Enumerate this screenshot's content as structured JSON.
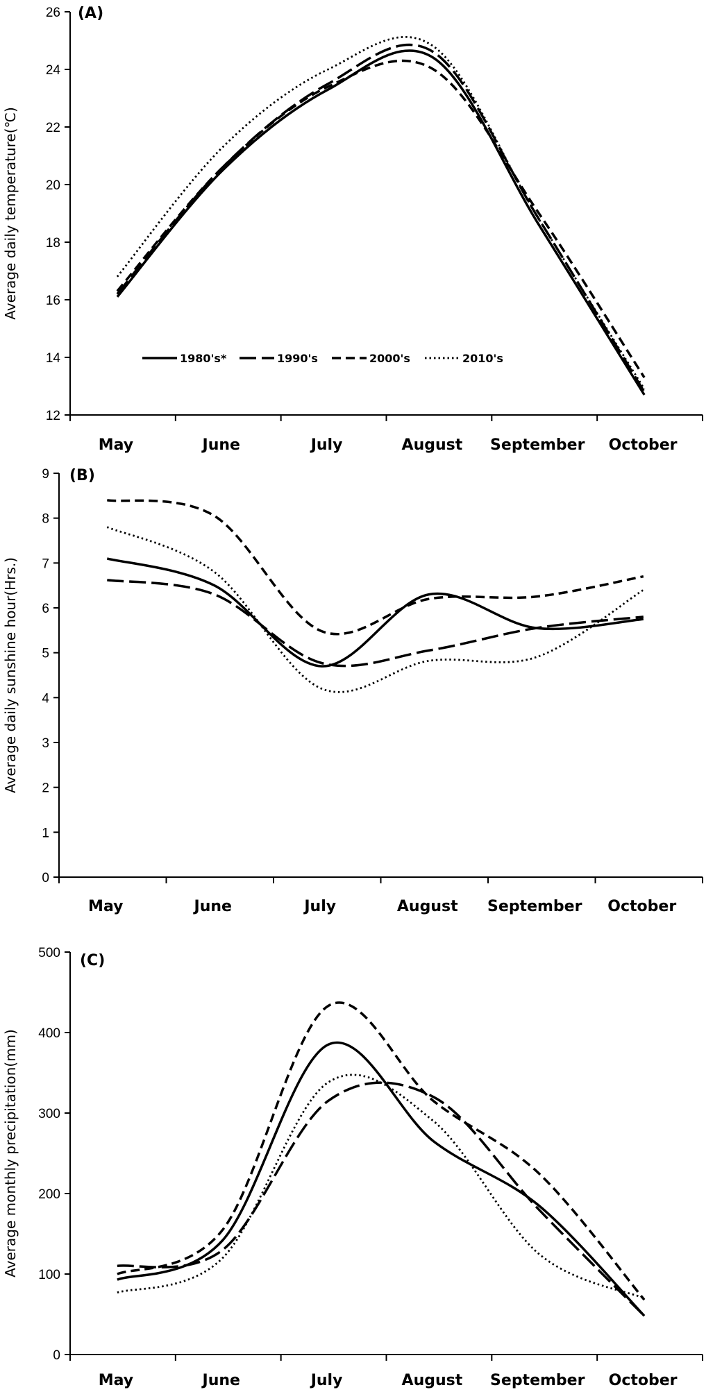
{
  "chart_data": [
    {
      "panel": "(A)",
      "type": "line",
      "ylabel": "Average daily temperature(℃)",
      "ylim": [
        12,
        26
      ],
      "yticks": [
        12,
        14,
        16,
        18,
        20,
        22,
        24,
        26
      ],
      "categories": [
        "May",
        "June",
        "July",
        "August",
        "September",
        "October"
      ],
      "legend": {
        "position": "bottom-left",
        "show": true
      },
      "grid": false,
      "series": [
        {
          "name": "1980's*",
          "style": "solid",
          "values": [
            16.1,
            20.5,
            23.3,
            24.4,
            18.6,
            12.7
          ]
        },
        {
          "name": "1990's",
          "style": "long-dash",
          "values": [
            16.2,
            20.6,
            23.5,
            24.6,
            18.8,
            12.8
          ]
        },
        {
          "name": "2000's",
          "style": "dash",
          "values": [
            16.3,
            20.6,
            23.4,
            24.0,
            19.0,
            13.3
          ]
        },
        {
          "name": "2010's",
          "style": "dot",
          "values": [
            16.8,
            21.3,
            24.0,
            24.8,
            18.8,
            12.9
          ]
        }
      ]
    },
    {
      "panel": "(B)",
      "type": "line",
      "ylabel": "Average daily sunshine hour(Hrs.)",
      "ylim": [
        0,
        9
      ],
      "yticks": [
        0,
        1,
        2,
        3,
        4,
        5,
        6,
        7,
        8,
        9
      ],
      "categories": [
        "May",
        "June",
        "July",
        "August",
        "September",
        "October"
      ],
      "grid": false,
      "series": [
        {
          "name": "1980's*",
          "style": "solid",
          "values": [
            7.1,
            6.5,
            4.7,
            6.3,
            5.55,
            5.75
          ]
        },
        {
          "name": "1990's",
          "style": "long-dash",
          "values": [
            6.62,
            6.3,
            4.77,
            5.05,
            5.55,
            5.8
          ]
        },
        {
          "name": "2000's",
          "style": "dash",
          "values": [
            8.4,
            8.05,
            5.48,
            6.2,
            6.25,
            6.7
          ]
        },
        {
          "name": "2010's",
          "style": "dot",
          "values": [
            7.8,
            6.8,
            4.2,
            4.82,
            4.9,
            6.4
          ]
        }
      ]
    },
    {
      "panel": "(C)",
      "type": "line",
      "ylabel": "Average monthly precipitation(mm)",
      "ylim": [
        0,
        500
      ],
      "yticks": [
        0,
        100,
        200,
        300,
        400,
        500
      ],
      "categories": [
        "May",
        "June",
        "July",
        "August",
        "September",
        "October"
      ],
      "grid": false,
      "series": [
        {
          "name": "1980's*",
          "style": "solid",
          "values": [
            93,
            142,
            385,
            265,
            185,
            48
          ]
        },
        {
          "name": "1990's",
          "style": "long-dash",
          "values": [
            110,
            130,
            315,
            320,
            180,
            48
          ]
        },
        {
          "name": "2000's",
          "style": "dash",
          "values": [
            100,
            155,
            433,
            315,
            225,
            68
          ]
        },
        {
          "name": "2010's",
          "style": "dot",
          "values": [
            77,
            120,
            338,
            290,
            125,
            70
          ]
        }
      ]
    }
  ]
}
